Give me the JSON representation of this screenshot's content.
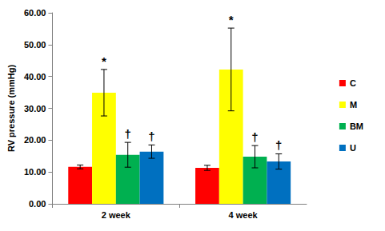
{
  "chart_data": {
    "type": "bar",
    "y_label": "RV pressure (mmHg)",
    "categories": [
      "2 week",
      "4 week"
    ],
    "series": [
      {
        "name": "C",
        "color": "#ff0000",
        "values": [
          11.6,
          11.3
        ],
        "errors": [
          0.6,
          0.8
        ]
      },
      {
        "name": "M",
        "color": "#ffff00",
        "values": [
          34.9,
          42.2
        ],
        "errors": [
          7.3,
          13.0
        ],
        "annotations": [
          "*",
          "*"
        ]
      },
      {
        "name": "BM",
        "color": "#00b050",
        "values": [
          15.4,
          14.8
        ],
        "errors": [
          3.9,
          3.5
        ],
        "annotations": [
          "†",
          "†"
        ]
      },
      {
        "name": "U",
        "color": "#0070c0",
        "values": [
          16.4,
          13.3
        ],
        "errors": [
          2.1,
          2.4
        ],
        "annotations": [
          "†",
          "†"
        ]
      }
    ],
    "ylim": [
      0,
      60
    ],
    "yticks": [
      {
        "value": 0,
        "label": "0.00"
      },
      {
        "value": 10,
        "label": "10.00"
      },
      {
        "value": 20,
        "label": "20.00"
      },
      {
        "value": 30,
        "label": "30.00"
      },
      {
        "value": 40,
        "label": "40.00"
      },
      {
        "value": 50,
        "label": "50.00"
      },
      {
        "value": 60,
        "label": "60.00"
      }
    ],
    "grid": false,
    "legend": "right"
  }
}
